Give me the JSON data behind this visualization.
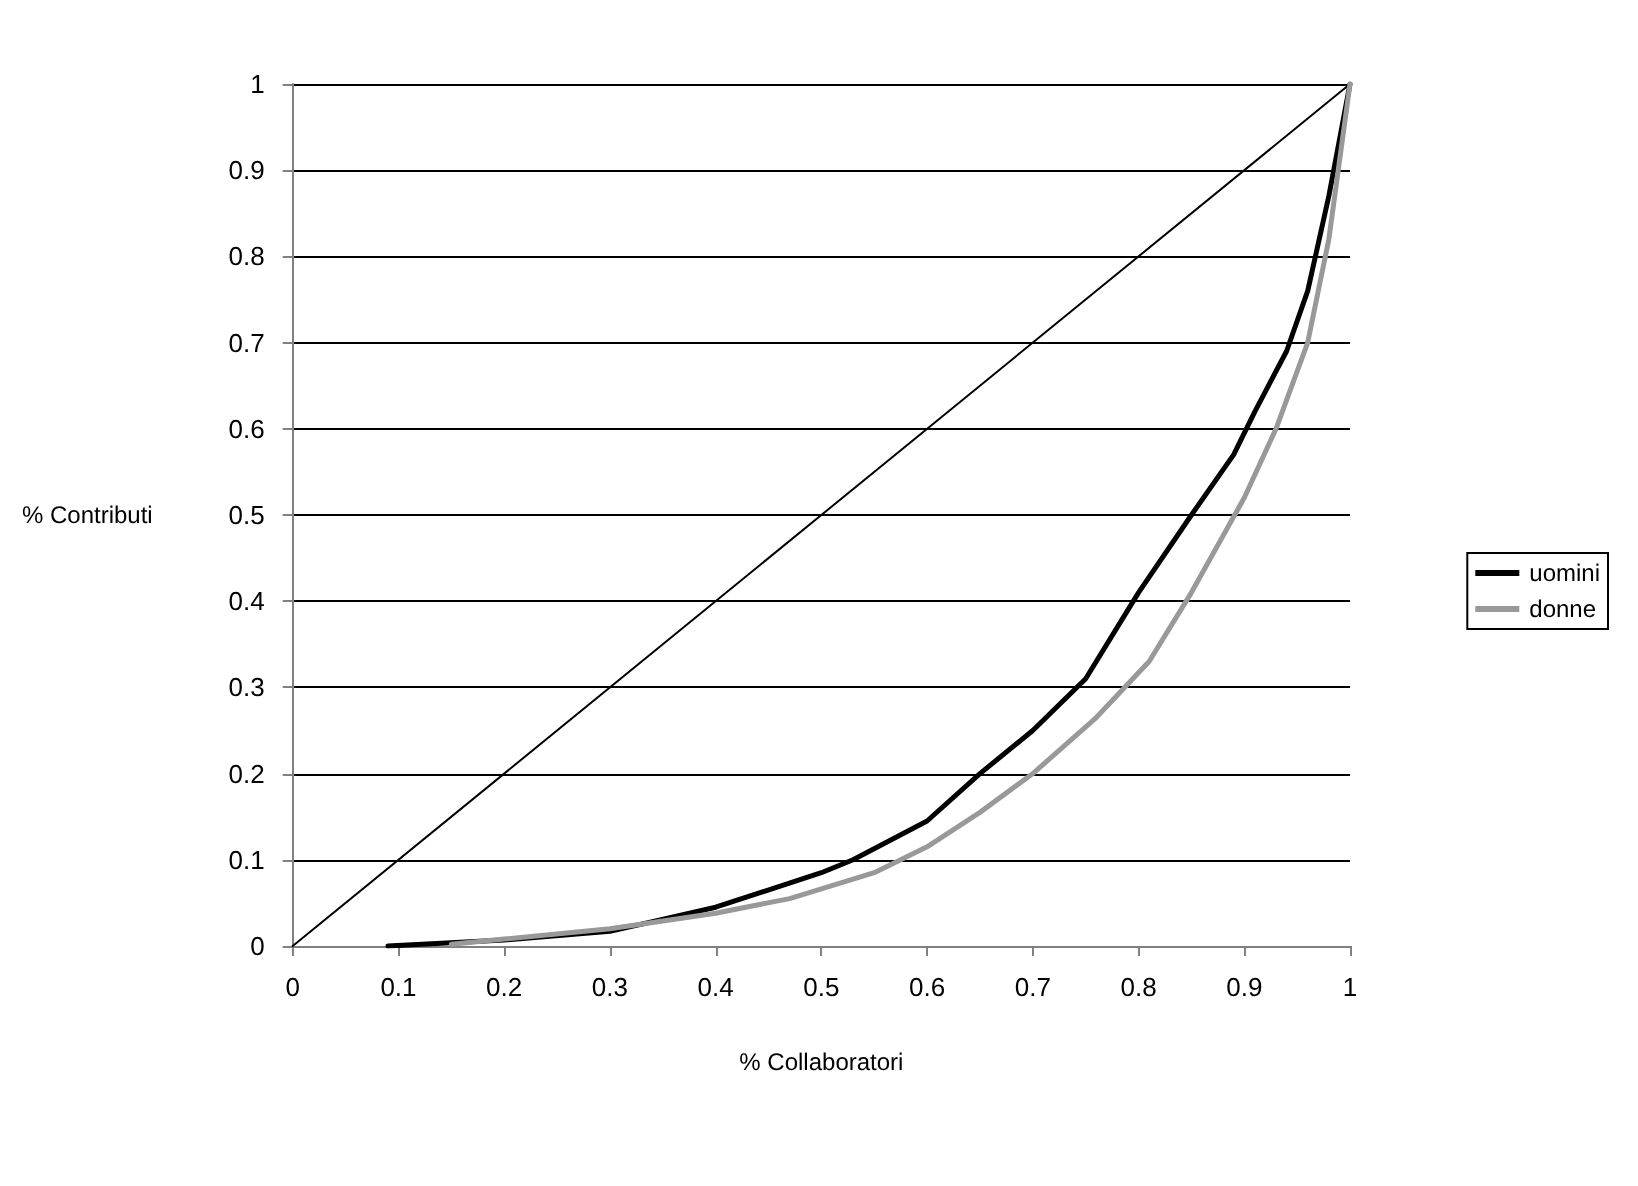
{
  "chart_data": {
    "type": "line",
    "xlabel": "% Collaboratori",
    "ylabel": "% Contributi",
    "xlim": [
      0,
      1
    ],
    "xticks": [
      0,
      0.1,
      0.2,
      0.3,
      0.4,
      0.5,
      0.6,
      0.7,
      0.8,
      0.9,
      1
    ],
    "ylim": [
      0,
      1
    ],
    "yticks": [
      0,
      0.1,
      0.2,
      0.3,
      0.4,
      0.5,
      0.6,
      0.7,
      0.8,
      0.9,
      1
    ],
    "grid": "y",
    "legend": "right",
    "marker": "none",
    "line_style": "solid",
    "series": [
      {
        "color": "#000000",
        "x": [
          0,
          1
        ],
        "values": [
          0,
          1
        ]
      },
      {
        "name": "uomini",
        "color": "#000000",
        "x": [
          0.09,
          0.2,
          0.3,
          0.4,
          0.5,
          0.53,
          0.6,
          0.65,
          0.7,
          0.75,
          0.8,
          0.85,
          0.89,
          0.91,
          0.94,
          0.96,
          0.98,
          1
        ],
        "values": [
          0,
          0.007,
          0.017,
          0.045,
          0.085,
          0.1,
          0.145,
          0.2,
          0.25,
          0.31,
          0.41,
          0.5,
          0.57,
          0.62,
          0.69,
          0.76,
          0.87,
          1
        ]
      },
      {
        "name": "donne",
        "color": "#999999",
        "x": [
          0.15,
          0.2,
          0.3,
          0.4,
          0.47,
          0.55,
          0.6,
          0.65,
          0.7,
          0.76,
          0.81,
          0.85,
          0.9,
          0.93,
          0.96,
          0.98,
          1
        ],
        "values": [
          0.002,
          0.008,
          0.02,
          0.038,
          0.055,
          0.085,
          0.115,
          0.155,
          0.2,
          0.265,
          0.33,
          0.41,
          0.52,
          0.6,
          0.7,
          0.82,
          1
        ]
      }
    ]
  }
}
